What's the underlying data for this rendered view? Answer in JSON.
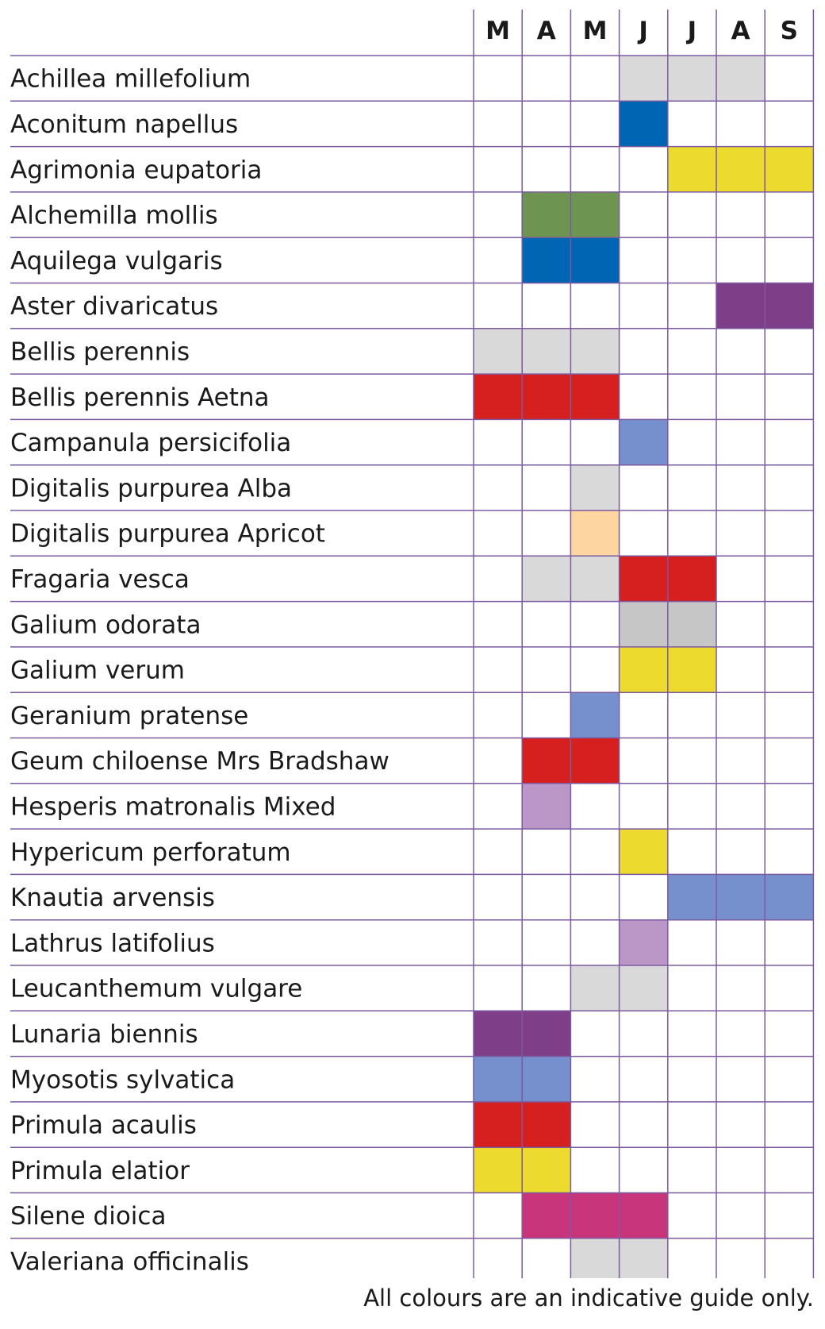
{
  "chart_data": {
    "type": "table",
    "months": [
      "M",
      "A",
      "M",
      "J",
      "J",
      "A",
      "S"
    ],
    "colors": {
      "white": "#d9d9d9",
      "blue": "#0066b3",
      "yellow": "#ecdb2e",
      "green": "#6e9452",
      "purple": "#7f3f88",
      "red": "#d61f1f",
      "light-blue": "#7590cc",
      "peach": "#fdd5a0",
      "grey": "#c6c6c6",
      "lilac": "#bb97c8",
      "pink": "#c9357a"
    },
    "plants": [
      {
        "name": "Achillea millefolium",
        "months": [
          3,
          4,
          5
        ],
        "color": "white"
      },
      {
        "name": "Aconitum napellus",
        "months": [
          3
        ],
        "color": "blue"
      },
      {
        "name": "Agrimonia eupatoria",
        "months": [
          4,
          5,
          6
        ],
        "color": "yellow"
      },
      {
        "name": "Alchemilla mollis",
        "months": [
          1,
          2
        ],
        "color": "green"
      },
      {
        "name": "Aquilega vulgaris",
        "months": [
          1,
          2
        ],
        "color": "blue"
      },
      {
        "name": "Aster divaricatus",
        "months": [
          5,
          6
        ],
        "color": "purple"
      },
      {
        "name": "Bellis perennis",
        "months": [
          0,
          1,
          2
        ],
        "color": "white"
      },
      {
        "name": "Bellis perennis Aetna",
        "months": [
          0,
          1,
          2
        ],
        "color": "red"
      },
      {
        "name": "Campanula persicifolia",
        "months": [
          3
        ],
        "color": "light-blue"
      },
      {
        "name": "Digitalis purpurea Alba",
        "months": [
          2
        ],
        "color": "white"
      },
      {
        "name": "Digitalis purpurea Apricot",
        "months": [
          2
        ],
        "color": "peach"
      },
      {
        "name": "Fragaria vesca",
        "months": [
          1,
          2
        ],
        "color": "white",
        "extra": {
          "months": [
            3,
            4
          ],
          "color": "red"
        }
      },
      {
        "name": "Galium odorata",
        "months": [
          3,
          4
        ],
        "color": "grey"
      },
      {
        "name": "Galium verum",
        "months": [
          3,
          4
        ],
        "color": "yellow"
      },
      {
        "name": "Geranium pratense",
        "months": [
          2
        ],
        "color": "light-blue"
      },
      {
        "name": "Geum chiloense Mrs Bradshaw",
        "months": [
          1,
          2
        ],
        "color": "red"
      },
      {
        "name": "Hesperis matronalis Mixed",
        "months": [
          1
        ],
        "color": "lilac"
      },
      {
        "name": "Hypericum perforatum",
        "months": [
          3
        ],
        "color": "yellow"
      },
      {
        "name": "Knautia arvensis",
        "months": [
          4,
          5,
          6
        ],
        "color": "light-blue"
      },
      {
        "name": "Lathrus latifolius",
        "months": [
          3
        ],
        "color": "lilac"
      },
      {
        "name": "Leucanthemum vulgare",
        "months": [
          2,
          3
        ],
        "color": "white"
      },
      {
        "name": "Lunaria biennis",
        "months": [
          0,
          1
        ],
        "color": "purple"
      },
      {
        "name": "Myosotis sylvatica",
        "months": [
          0,
          1
        ],
        "color": "light-blue"
      },
      {
        "name": "Primula acaulis",
        "months": [
          0,
          1
        ],
        "color": "red"
      },
      {
        "name": "Primula elatior",
        "months": [
          0,
          1
        ],
        "color": "yellow"
      },
      {
        "name": "Silene dioica",
        "months": [
          1,
          2,
          3
        ],
        "color": "pink"
      },
      {
        "name": "Valeriana officinalis",
        "months": [
          2,
          3
        ],
        "color": "white"
      }
    ]
  },
  "footnote": "All colours are an indicative guide only."
}
